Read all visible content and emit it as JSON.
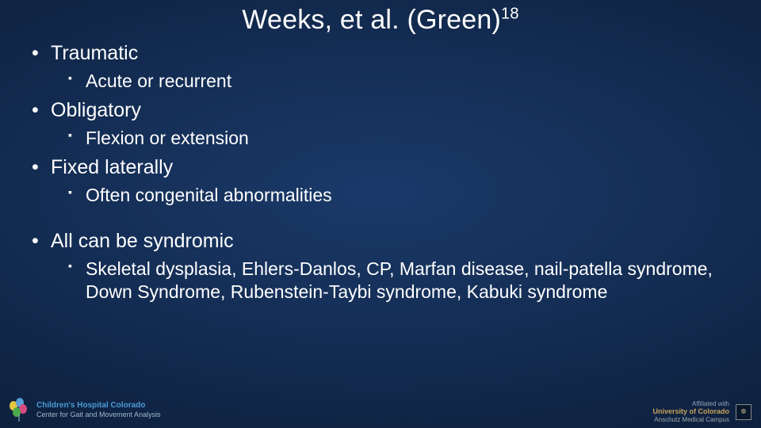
{
  "title_main": "Weeks, et al. (Green)",
  "title_sup": "18",
  "bullets": [
    {
      "label": "Traumatic",
      "sub": [
        "Acute or recurrent"
      ]
    },
    {
      "label": "Obligatory",
      "sub": [
        "Flexion or extension"
      ]
    },
    {
      "label": "Fixed laterally",
      "sub": [
        "Often congenital abnormalities"
      ]
    }
  ],
  "spacer_after_index": 2,
  "bullets2": [
    {
      "label": "All can be syndromic",
      "sub": [
        "Skeletal dysplasia, Ehlers-Danlos, CP, Marfan disease, nail-patella syndrome, Down Syndrome, Rubenstein-Taybi syndrome, Kabuki syndrome"
      ]
    }
  ],
  "footer_left_line1": "Children's Hospital Colorado",
  "footer_left_line2": "Center for Gait and Movement Analysis",
  "footer_right_line0": "Affiliated with",
  "footer_right_line1": "University of Colorado",
  "footer_right_line2": "Anschutz Medical Campus",
  "cu_label": "⯐"
}
